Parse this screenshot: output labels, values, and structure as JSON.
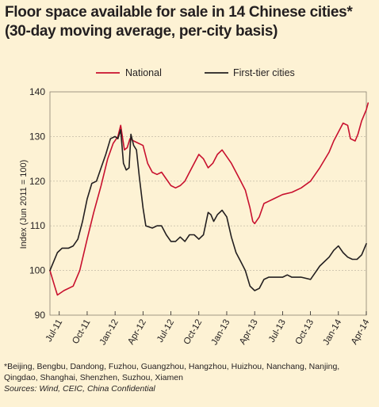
{
  "title_line1": "Floor space available for sale in 14 Chinese cities*",
  "title_line2": "(30-day moving average, per-city basis)",
  "footnote_line1": "*Beijing, Bengbu, Dandong, Fuzhou, Guangzhou, Hangzhou, Huizhou, Nanchang, Nanjing,",
  "footnote_line2": "Qingdao, Shanghai, Shenzhen, Suzhou, Xiamen",
  "sources": "Sources: Wind, CEIC, China Confidential",
  "colors": {
    "national": "#c8102e",
    "first_tier": "#231f20",
    "background": "#fdf2d4"
  },
  "chart_data": {
    "type": "line",
    "xlabel": "",
    "ylabel": "Index (Jun 2011 = 100)",
    "ylim": [
      90,
      140
    ],
    "yticks": [
      90,
      100,
      110,
      120,
      130,
      140
    ],
    "xlim": [
      0,
      34
    ],
    "xticks": [
      {
        "x": 1,
        "label": "Jul-11"
      },
      {
        "x": 4,
        "label": "Oct-11"
      },
      {
        "x": 7,
        "label": "Jan-12"
      },
      {
        "x": 10,
        "label": "Apr-12"
      },
      {
        "x": 13,
        "label": "Jul-12"
      },
      {
        "x": 16,
        "label": "Oct-12"
      },
      {
        "x": 19,
        "label": "Jan-13"
      },
      {
        "x": 22,
        "label": "Apr-13"
      },
      {
        "x": 25,
        "label": "Jul-13"
      },
      {
        "x": 28,
        "label": "Oct-13"
      },
      {
        "x": 31,
        "label": "Jan-14"
      },
      {
        "x": 34,
        "label": "Apr-14"
      }
    ],
    "grid": true,
    "legend": "top",
    "series": [
      {
        "name": "National",
        "color": "#c8102e",
        "points": [
          [
            0,
            100
          ],
          [
            0.5,
            96.5
          ],
          [
            0.8,
            94.5
          ],
          [
            1.5,
            95.5
          ],
          [
            2.5,
            96.5
          ],
          [
            3.2,
            100
          ],
          [
            4,
            107
          ],
          [
            4.7,
            113
          ],
          [
            5.5,
            119
          ],
          [
            6.2,
            125
          ],
          [
            6.8,
            128.5
          ],
          [
            7.3,
            130
          ],
          [
            7.6,
            132.5
          ],
          [
            8.0,
            127
          ],
          [
            8.3,
            127.5
          ],
          [
            8.6,
            129.5
          ],
          [
            9.0,
            129
          ],
          [
            9.5,
            128.5
          ],
          [
            10.0,
            128
          ],
          [
            10.5,
            124
          ],
          [
            11.0,
            122
          ],
          [
            11.5,
            121.5
          ],
          [
            12.0,
            122
          ],
          [
            12.5,
            120.5
          ],
          [
            13.0,
            119
          ],
          [
            13.5,
            118.5
          ],
          [
            14.0,
            119
          ],
          [
            14.5,
            120
          ],
          [
            15.0,
            122
          ],
          [
            15.5,
            124
          ],
          [
            16.0,
            126
          ],
          [
            16.5,
            125
          ],
          [
            17.0,
            123
          ],
          [
            17.5,
            124
          ],
          [
            18.0,
            126
          ],
          [
            18.5,
            127
          ],
          [
            19.0,
            125.5
          ],
          [
            19.5,
            124
          ],
          [
            20.0,
            122
          ],
          [
            20.5,
            120
          ],
          [
            21.0,
            118
          ],
          [
            21.5,
            114
          ],
          [
            21.8,
            111
          ],
          [
            22.0,
            110.5
          ],
          [
            22.5,
            112
          ],
          [
            23.0,
            115
          ],
          [
            23.5,
            115.5
          ],
          [
            24.0,
            116
          ],
          [
            25.0,
            117
          ],
          [
            26.0,
            117.5
          ],
          [
            27.0,
            118.5
          ],
          [
            28.0,
            120
          ],
          [
            29.0,
            123
          ],
          [
            30.0,
            126.5
          ],
          [
            30.5,
            129
          ],
          [
            31.0,
            131
          ],
          [
            31.5,
            133
          ],
          [
            32.0,
            132.5
          ],
          [
            32.3,
            129.5
          ],
          [
            32.8,
            129
          ],
          [
            33.1,
            130.5
          ],
          [
            33.5,
            133.5
          ],
          [
            34.0,
            136
          ],
          [
            34.2,
            137.5
          ]
        ]
      },
      {
        "name": "First-tier cities",
        "color": "#231f20",
        "points": [
          [
            0,
            100
          ],
          [
            0.4,
            102
          ],
          [
            0.8,
            104
          ],
          [
            1.3,
            105
          ],
          [
            2.0,
            105
          ],
          [
            2.5,
            105.5
          ],
          [
            3.0,
            107
          ],
          [
            3.5,
            111
          ],
          [
            4.0,
            116
          ],
          [
            4.5,
            119.5
          ],
          [
            5.0,
            120
          ],
          [
            5.5,
            123
          ],
          [
            6.0,
            126
          ],
          [
            6.5,
            129.5
          ],
          [
            7.0,
            130
          ],
          [
            7.3,
            129.5
          ],
          [
            7.6,
            131.5
          ],
          [
            7.9,
            124
          ],
          [
            8.2,
            122.5
          ],
          [
            8.5,
            123
          ],
          [
            8.7,
            130.5
          ],
          [
            9.0,
            128
          ],
          [
            9.3,
            127
          ],
          [
            9.6,
            121
          ],
          [
            10.0,
            114
          ],
          [
            10.3,
            110
          ],
          [
            11.0,
            109.5
          ],
          [
            11.5,
            110
          ],
          [
            12.0,
            110
          ],
          [
            12.5,
            108
          ],
          [
            13.0,
            106.5
          ],
          [
            13.5,
            106.5
          ],
          [
            14.0,
            107.5
          ],
          [
            14.5,
            106.5
          ],
          [
            15.0,
            108
          ],
          [
            15.5,
            108
          ],
          [
            16.0,
            107
          ],
          [
            16.5,
            108
          ],
          [
            17.0,
            113
          ],
          [
            17.3,
            112.5
          ],
          [
            17.6,
            111
          ],
          [
            18.0,
            112.5
          ],
          [
            18.5,
            113.5
          ],
          [
            19.0,
            112
          ],
          [
            19.5,
            107.5
          ],
          [
            20.0,
            104
          ],
          [
            20.5,
            102
          ],
          [
            21.0,
            100
          ],
          [
            21.5,
            96.5
          ],
          [
            22.0,
            95.5
          ],
          [
            22.5,
            96
          ],
          [
            23.0,
            98
          ],
          [
            23.5,
            98.5
          ],
          [
            24.0,
            98.5
          ],
          [
            24.5,
            98.5
          ],
          [
            25.0,
            98.5
          ],
          [
            25.5,
            99
          ],
          [
            26.0,
            98.5
          ],
          [
            27.0,
            98.5
          ],
          [
            28.0,
            98
          ],
          [
            28.5,
            99.5
          ],
          [
            29.0,
            101
          ],
          [
            30.0,
            103
          ],
          [
            30.5,
            104.5
          ],
          [
            31.0,
            105.5
          ],
          [
            31.5,
            104
          ],
          [
            32.0,
            103
          ],
          [
            32.5,
            102.5
          ],
          [
            33.0,
            102.5
          ],
          [
            33.5,
            103.5
          ],
          [
            34.0,
            106
          ]
        ]
      }
    ]
  }
}
